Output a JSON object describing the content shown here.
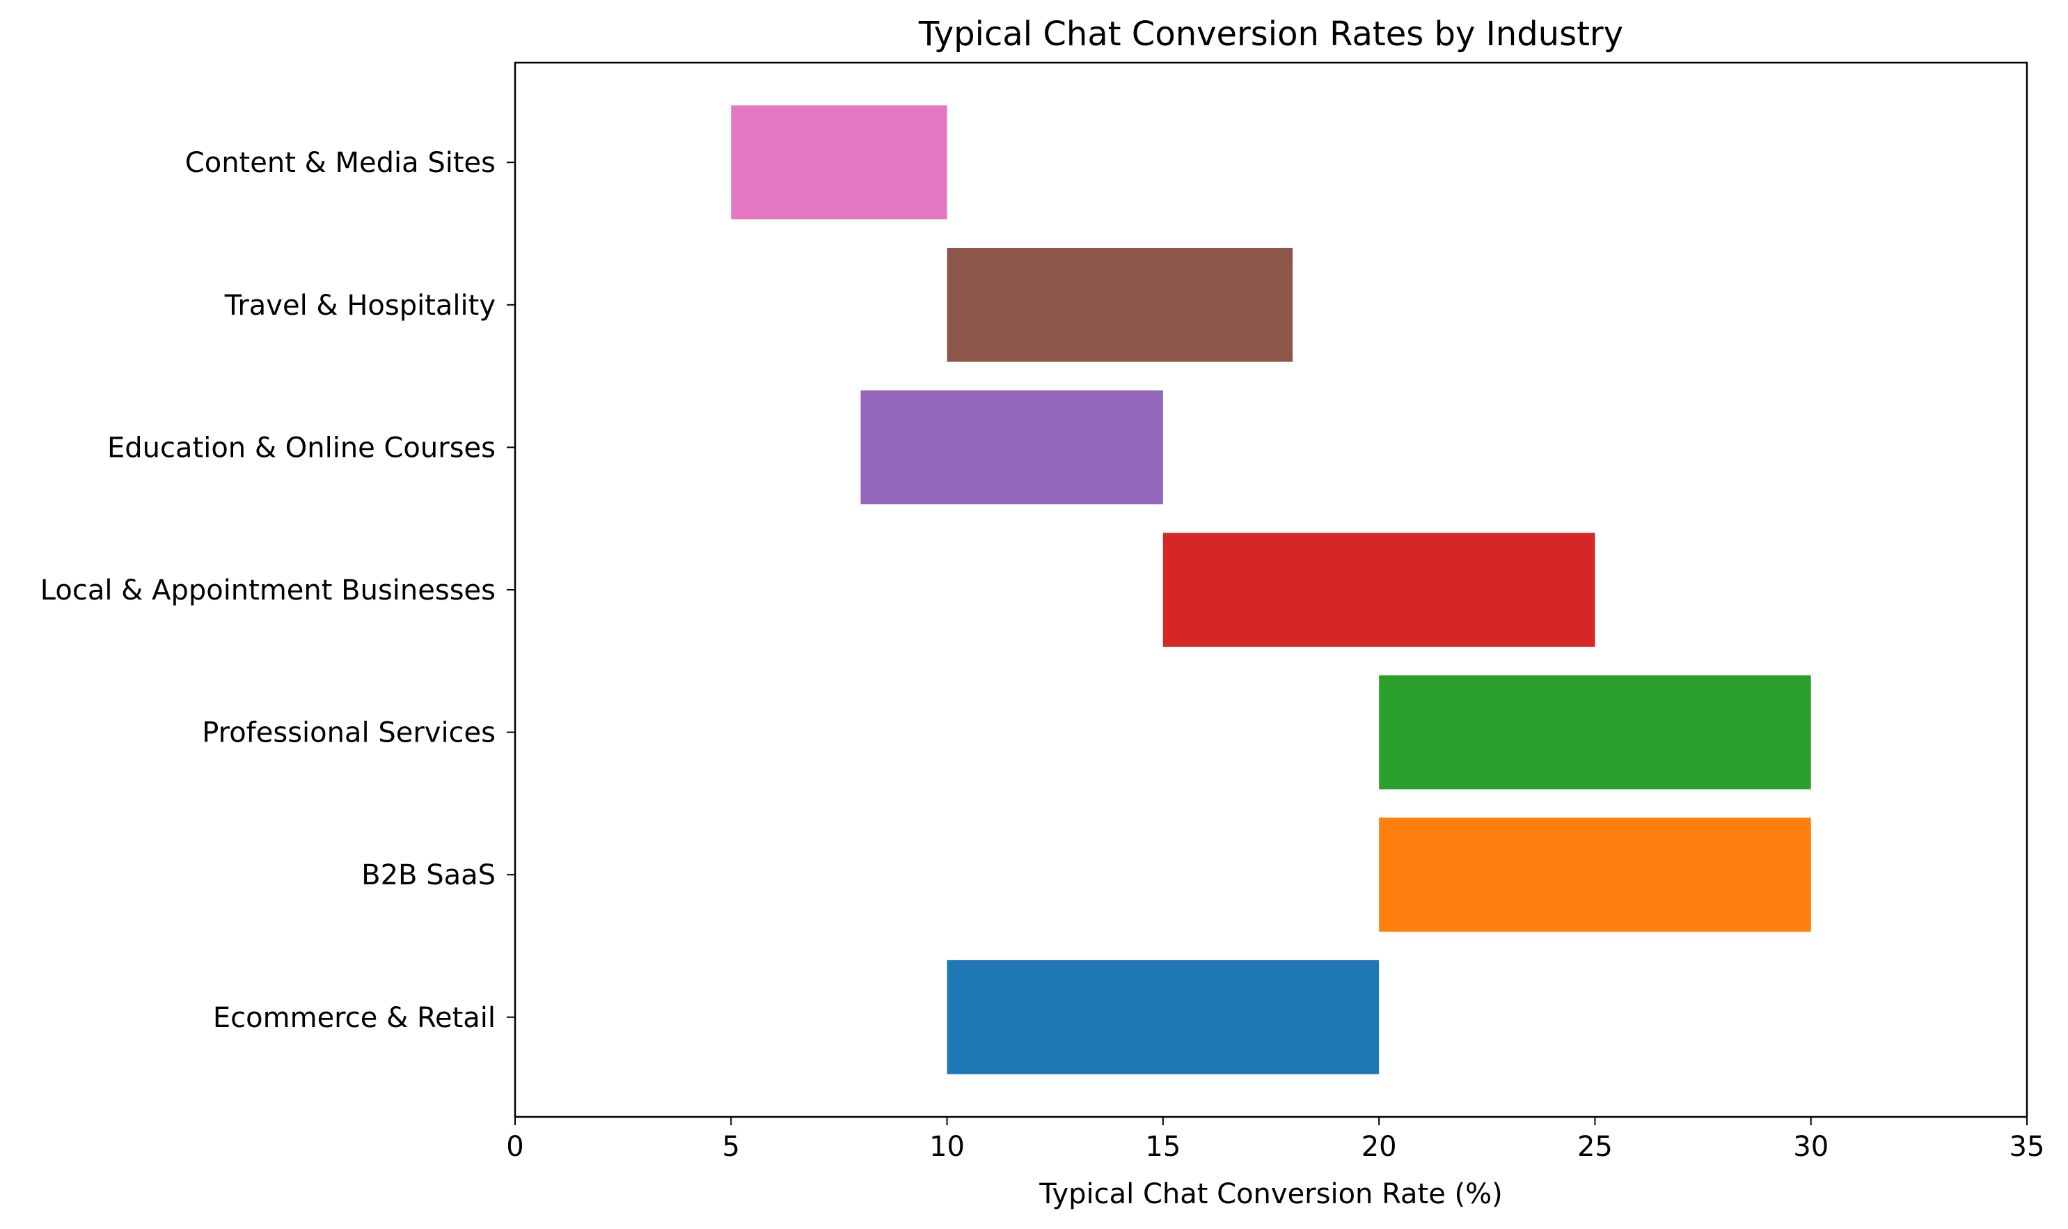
{
  "chart_data": {
    "type": "bar",
    "orientation": "horizontal-range",
    "title": "Typical Chat Conversion Rates by Industry",
    "xlabel": "Typical Chat Conversion Rate (%)",
    "ylabel": "",
    "xlim": [
      0,
      35
    ],
    "xticks": [
      0,
      5,
      10,
      15,
      20,
      25,
      30,
      35
    ],
    "grid": false,
    "categories": [
      "Ecommerce & Retail",
      "B2B SaaS",
      "Professional Services",
      "Local & Appointment Businesses",
      "Education & Online Courses",
      "Travel & Hospitality",
      "Content & Media Sites"
    ],
    "ranges": [
      [
        10,
        20
      ],
      [
        20,
        30
      ],
      [
        20,
        30
      ],
      [
        15,
        25
      ],
      [
        8,
        15
      ],
      [
        10,
        18
      ],
      [
        5,
        10
      ]
    ],
    "colors": [
      "#1f77b4",
      "#ff7f0e",
      "#2ca02c",
      "#d62728",
      "#9467bd",
      "#8c564b",
      "#e377c2"
    ]
  }
}
